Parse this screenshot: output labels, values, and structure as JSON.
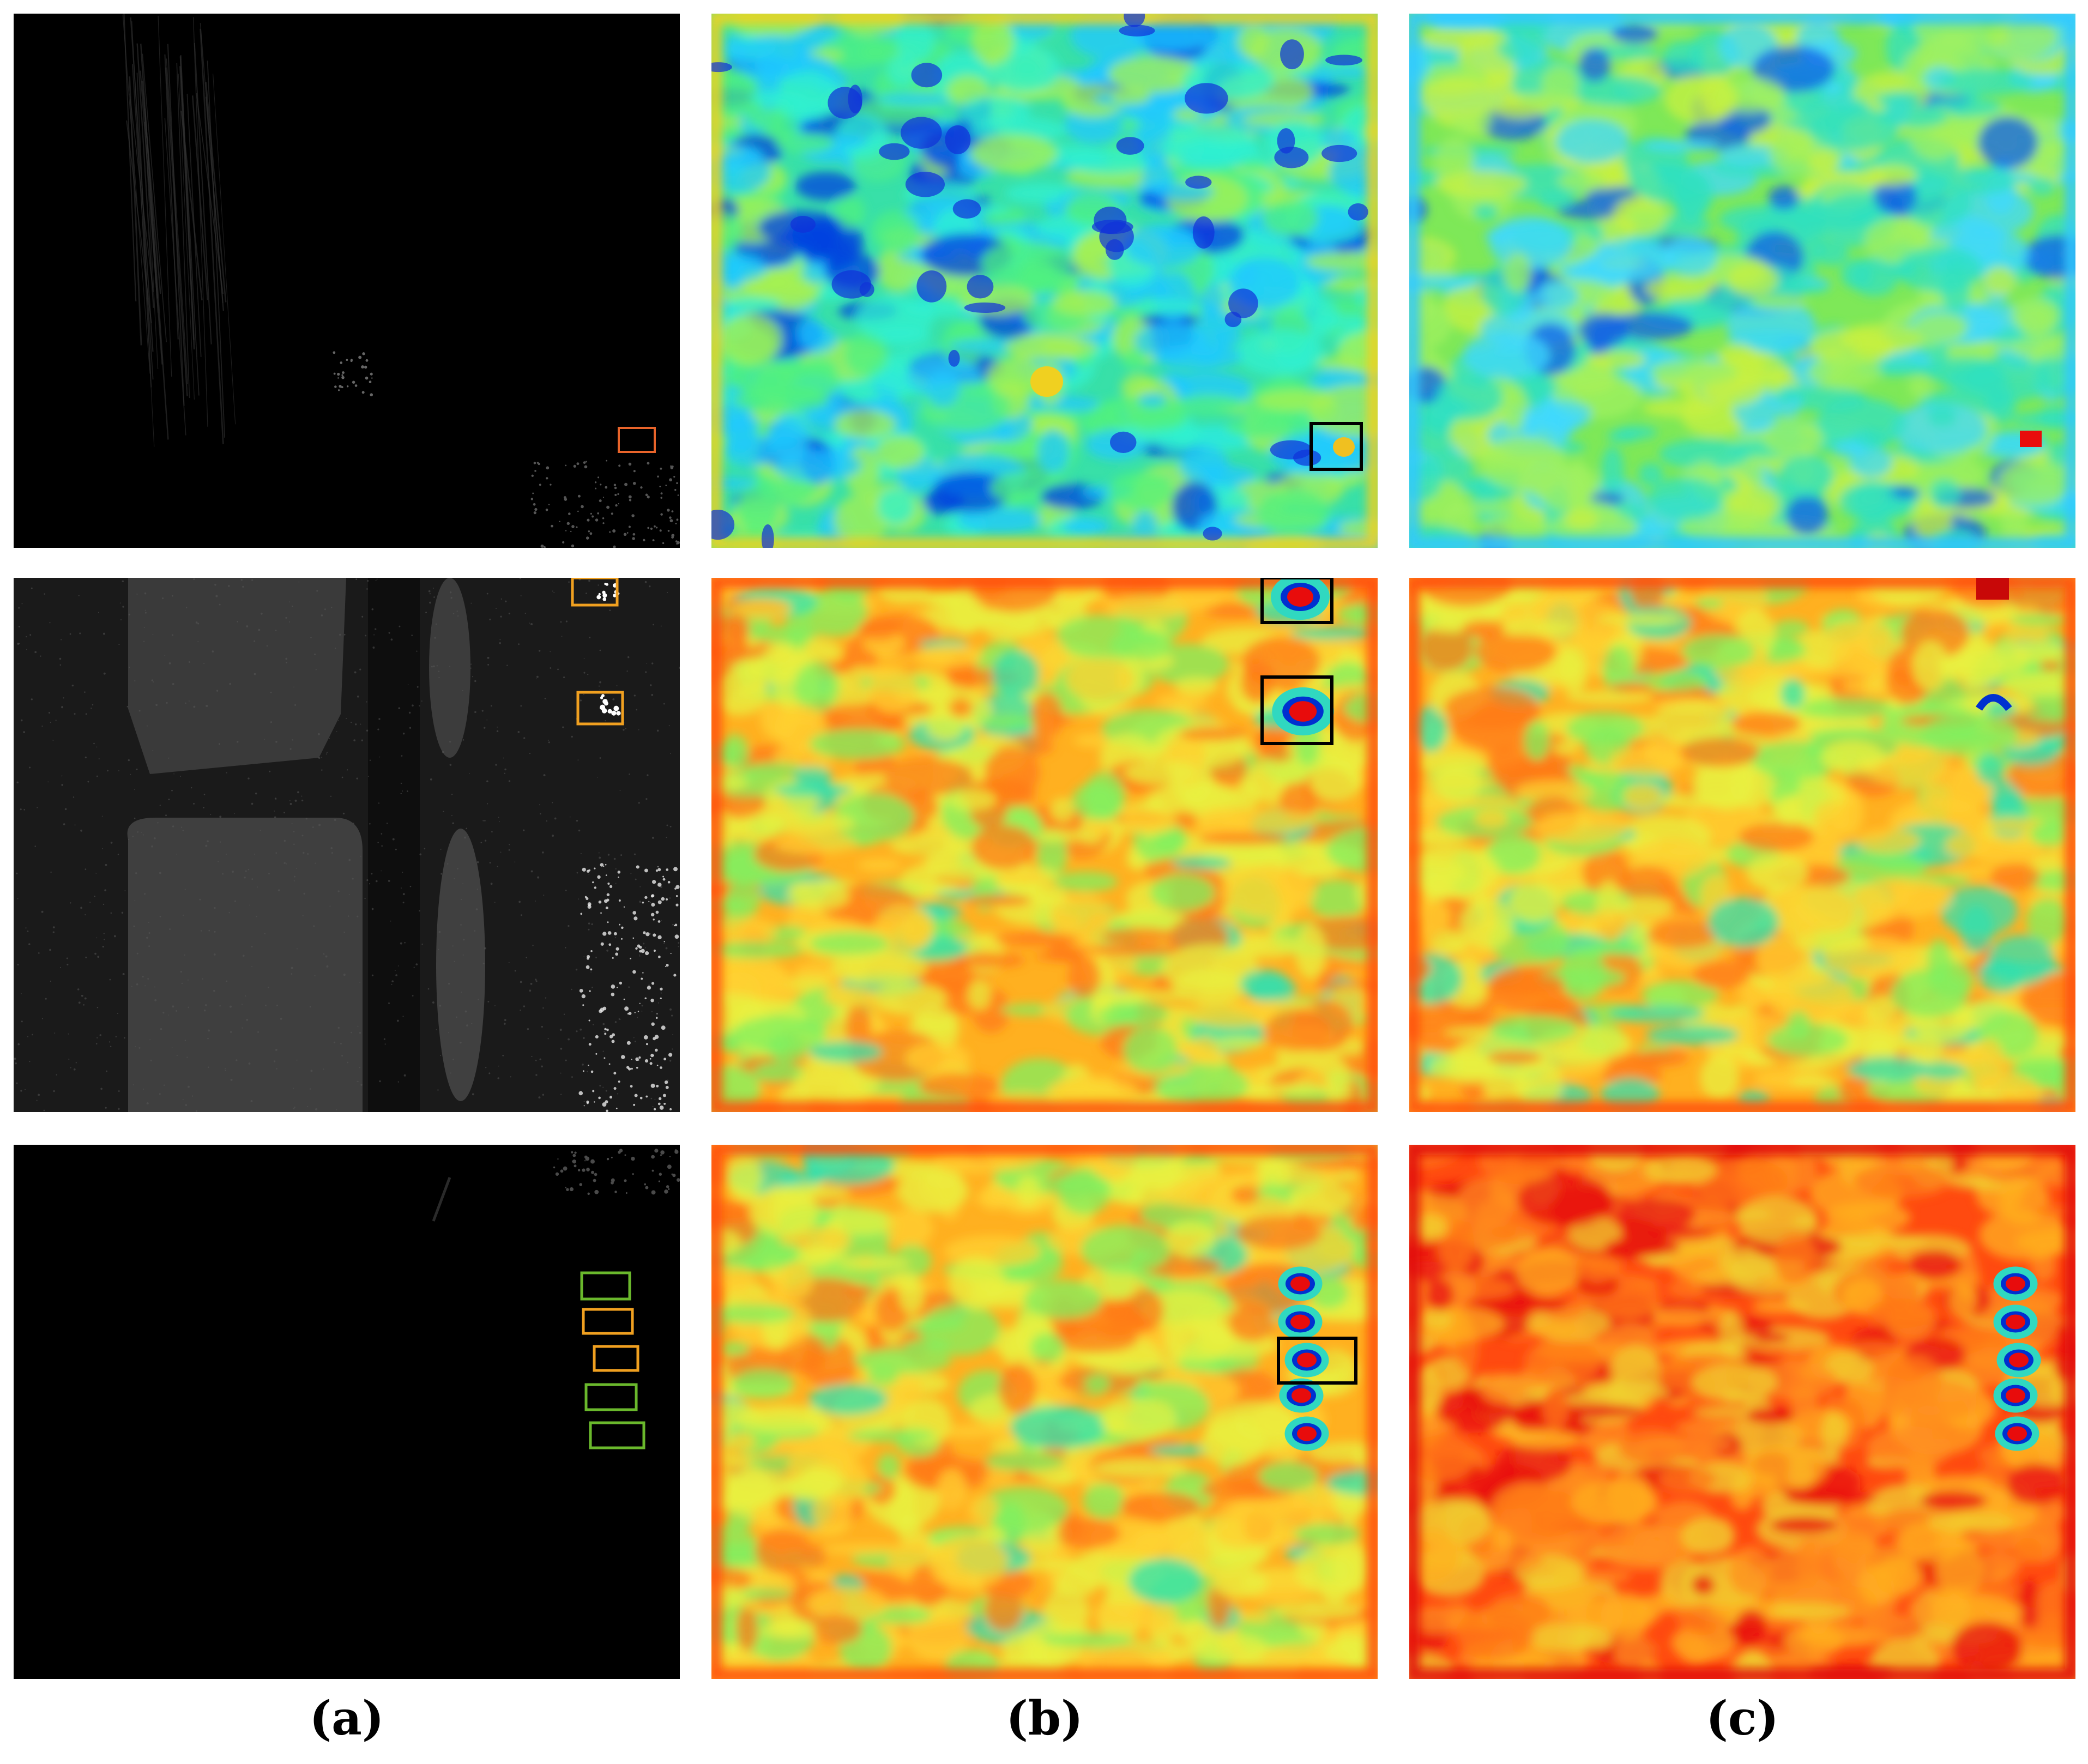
{
  "figure": {
    "column_labels": [
      "(a)",
      "(b)",
      "(c)"
    ],
    "rows": [
      {
        "sar_box_colors": [
          "#e8642a"
        ],
        "map_b_style": "blue-green",
        "map_c_style": "green-yellow"
      },
      {
        "sar_box_colors": [
          "#f0a020",
          "#f0a020"
        ],
        "map_b_style": "orange",
        "map_c_style": "orange"
      },
      {
        "sar_box_colors": [
          "#6ab82c",
          "#f0a020",
          "#f0a020",
          "#6ab82c",
          "#6ab82c"
        ],
        "map_b_style": "orange",
        "map_c_style": "red"
      }
    ],
    "colors": {
      "sar_background": "#000000",
      "detection_box": "#000000",
      "colormap": [
        "#0000c8",
        "#00c8ff",
        "#40e880",
        "#e8f040",
        "#ff9020",
        "#e81010"
      ]
    }
  }
}
